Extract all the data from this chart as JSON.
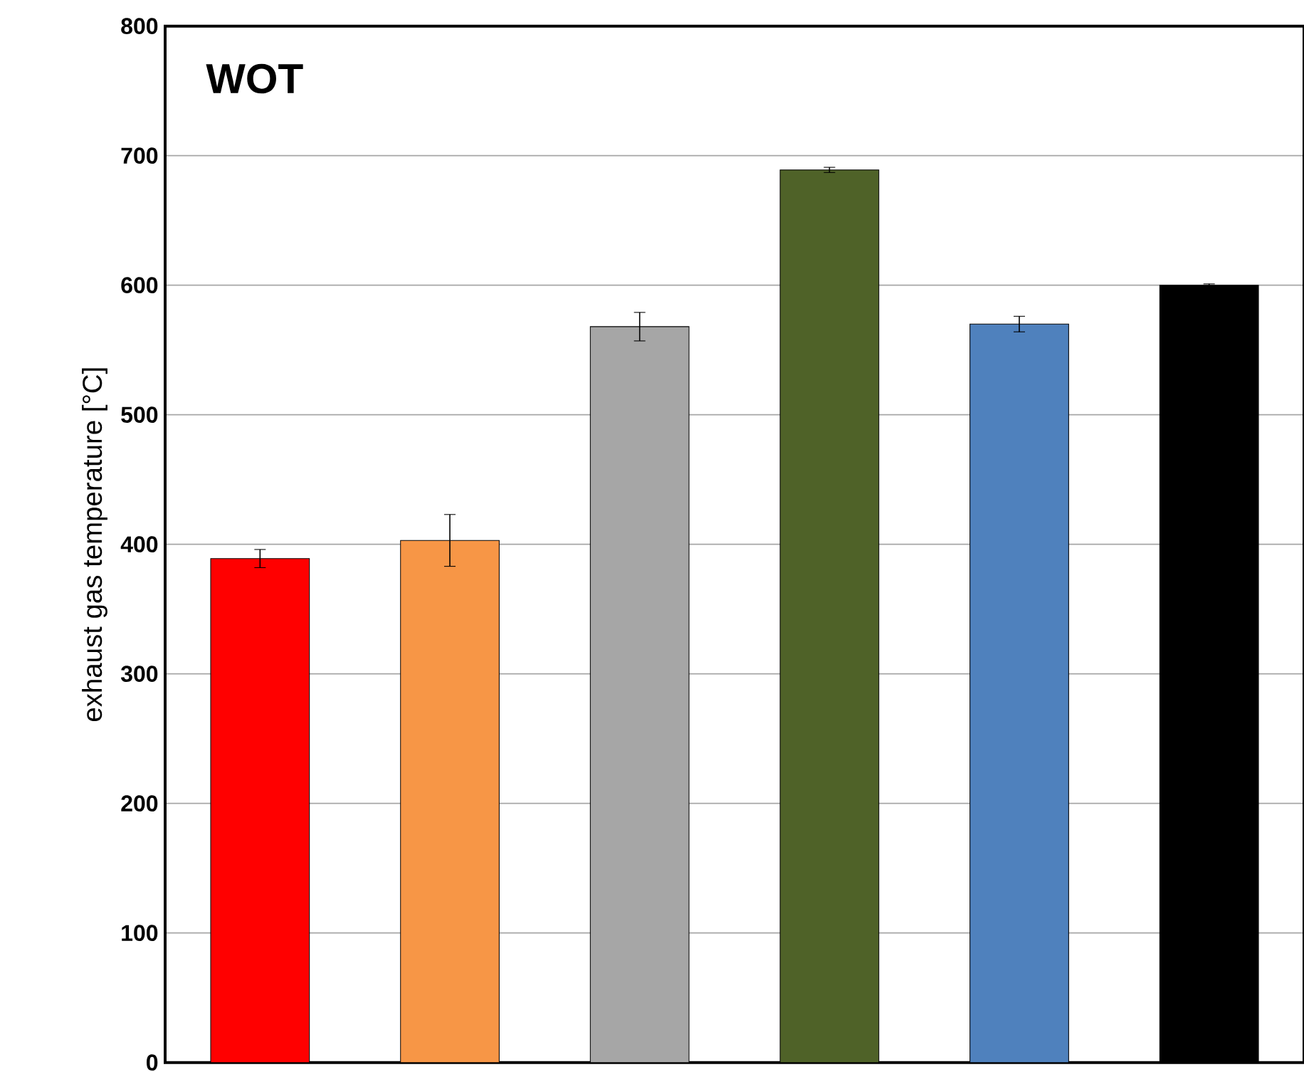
{
  "chart_data": {
    "type": "bar",
    "title": "WOT",
    "ylabel": "exhaust gas temperature [°C]",
    "categories": [
      null,
      null,
      null,
      null,
      null,
      null
    ],
    "values": [
      389,
      403,
      568,
      689,
      570,
      600
    ],
    "errors": [
      7,
      20,
      11,
      2,
      6,
      1
    ],
    "colors": [
      "#ff0000",
      "#f79646",
      "#a6a6a6",
      "#4f6228",
      "#4f81bd",
      "#000000"
    ],
    "ylim": [
      0,
      800
    ],
    "yticks": [
      0,
      100,
      200,
      300,
      400,
      500,
      600,
      700,
      800
    ],
    "grid": "y",
    "tick_labels": "y"
  }
}
